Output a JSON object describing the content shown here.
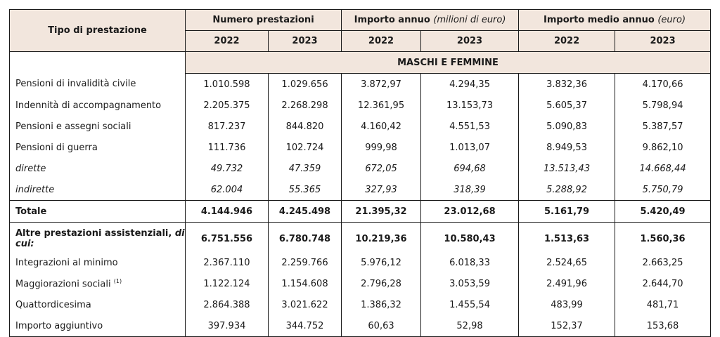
{
  "header": {
    "col_tipo": "Tipo di prestazione",
    "group_numero": "Numero prestazioni",
    "group_importo": "Importo annuo",
    "group_importo_unit": "(milioni di euro)",
    "group_medio": "Importo medio annuo",
    "group_medio_unit": "(euro)",
    "years": [
      "2022",
      "2023",
      "2022",
      "2023",
      "2022",
      "2023"
    ]
  },
  "section_title": "MASCHI E FEMMINE",
  "rows": [
    {
      "label": "Pensioni di  invalidità civile",
      "values": [
        "1.010.598",
        "1.029.656",
        "3.872,97",
        "4.294,35",
        "3.832,36",
        "4.170,66"
      ]
    },
    {
      "label": "Indennità di accompagnamento",
      "values": [
        "2.205.375",
        "2.268.298",
        "12.361,95",
        "13.153,73",
        "5.605,37",
        "5.798,94"
      ]
    },
    {
      "label": "Pensioni e assegni sociali",
      "values": [
        "817.237",
        "844.820",
        "4.160,42",
        "4.551,53",
        "5.090,83",
        "5.387,57"
      ]
    },
    {
      "label": "Pensioni di guerra",
      "values": [
        "111.736",
        "102.724",
        "999,98",
        "1.013,07",
        "8.949,53",
        "9.862,10"
      ]
    },
    {
      "label": "dirette",
      "values": [
        "49.732",
        "47.359",
        "672,05",
        "694,68",
        "13.513,43",
        "14.668,44"
      ]
    },
    {
      "label": "indirette",
      "values": [
        "62.004",
        "55.365",
        "327,93",
        "318,39",
        "5.288,92",
        "5.750,79"
      ]
    }
  ],
  "total": {
    "label": "Totale",
    "values": [
      "4.144.946",
      "4.245.498",
      "21.395,32",
      "23.012,68",
      "5.161,79",
      "5.420,49"
    ]
  },
  "altre": {
    "label": "Altre prestazioni assistenziali,",
    "label_suffix": "di cui:",
    "values": [
      "6.751.556",
      "6.780.748",
      "10.219,36",
      "10.580,43",
      "1.513,63",
      "1.560,36"
    ]
  },
  "sub_rows": [
    {
      "label": "Integrazioni al minimo",
      "values": [
        "2.367.110",
        "2.259.766",
        "5.976,12",
        "6.018,33",
        "2.524,65",
        "2.663,25"
      ]
    },
    {
      "label": "Maggiorazioni sociali",
      "note": "(1)",
      "values": [
        "1.122.124",
        "1.154.608",
        "2.796,28",
        "3.053,59",
        "2.491,96",
        "2.644,70"
      ]
    },
    {
      "label": "Quattordicesima",
      "values": [
        "2.864.388",
        "3.021.622",
        "1.386,32",
        "1.455,54",
        "483,99",
        "481,71"
      ]
    },
    {
      "label": "Importo aggiuntivo",
      "values": [
        "397.934",
        "344.752",
        "60,63",
        "52,98",
        "152,37",
        "153,68"
      ]
    }
  ]
}
